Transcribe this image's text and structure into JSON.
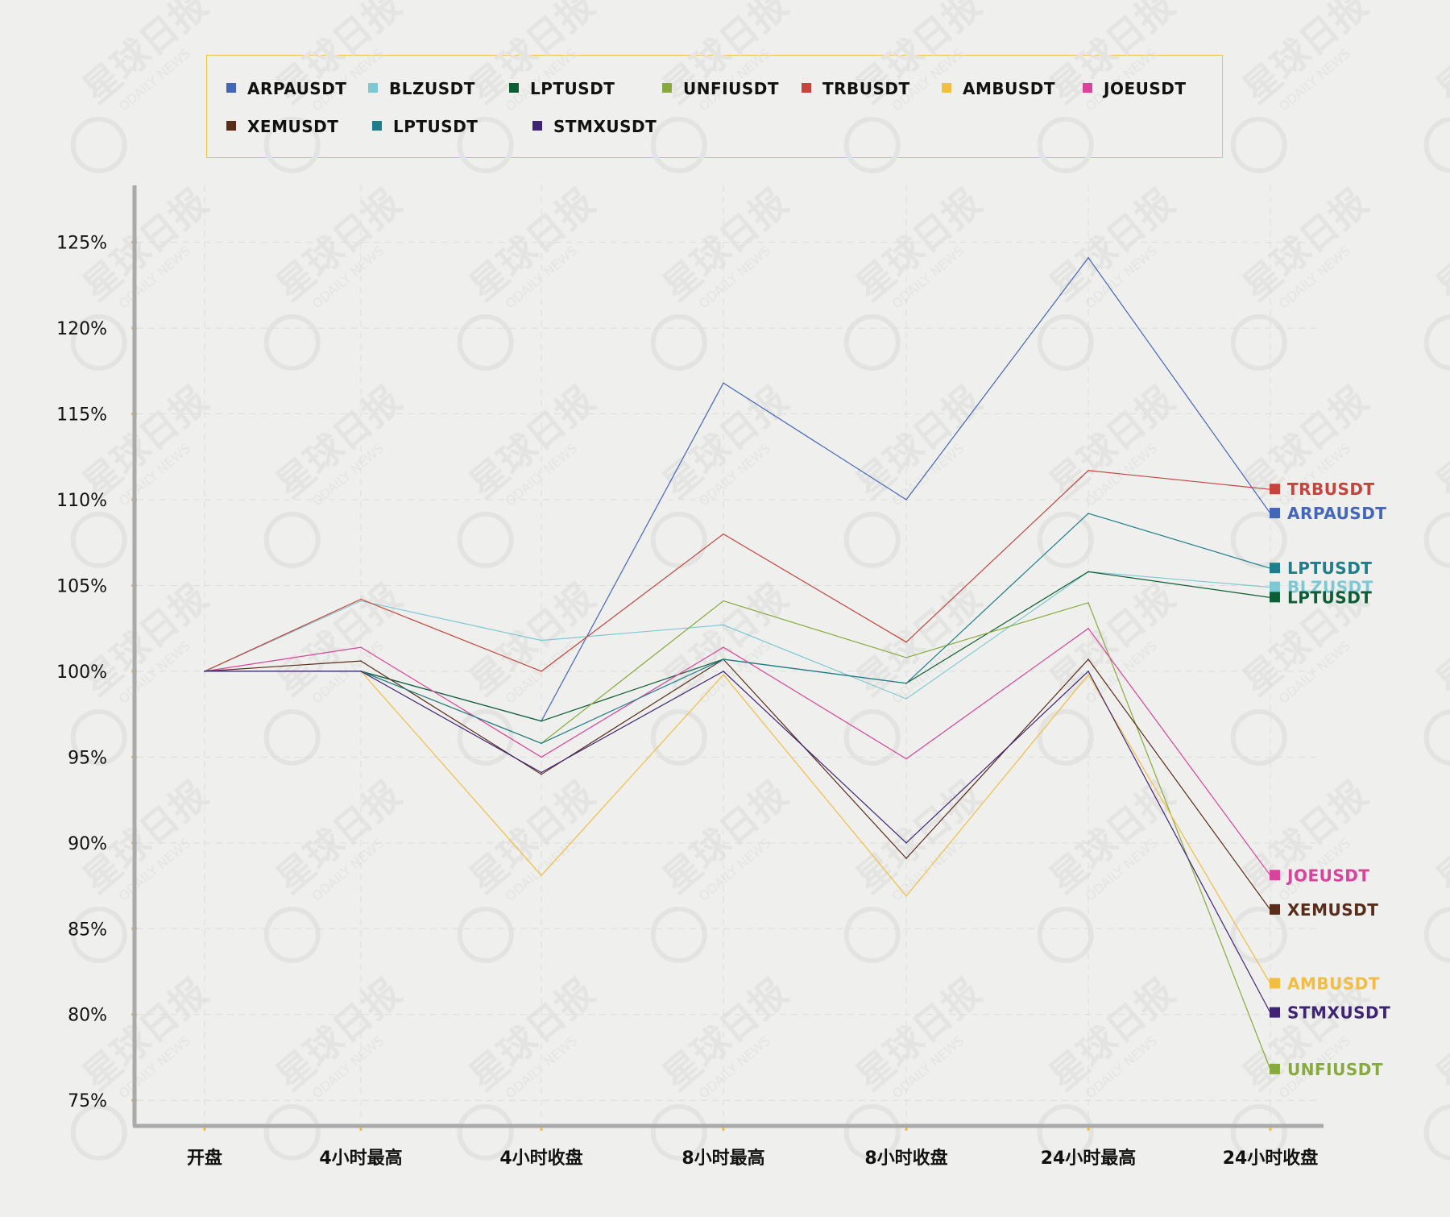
{
  "chart_data": {
    "type": "line",
    "categories": [
      "开盘",
      "4小时最高",
      "4小时收盘",
      "8小时最高",
      "8小时收盘",
      "24小时最高",
      "24小时收盘"
    ],
    "y_ticks": [
      "75%",
      "80%",
      "85%",
      "90%",
      "95%",
      "100%",
      "105%",
      "110%",
      "115%",
      "120%",
      "125%"
    ],
    "ylim": [
      73.6,
      128.6
    ],
    "y_unit": "%",
    "grid": true,
    "legend_position": "top",
    "series": [
      {
        "name": "ARPAUSDT",
        "color": "#4466b8",
        "values": [
          100,
          100,
          97.1,
          116.8,
          110.0,
          124.1,
          109.2
        ]
      },
      {
        "name": "BLZUSDT",
        "color": "#7ec8d4",
        "values": [
          100,
          104.1,
          101.8,
          102.7,
          98.4,
          105.8,
          104.9
        ]
      },
      {
        "name": "LPTUSDT",
        "color": "#0d5e34",
        "values": [
          100,
          100,
          97.1,
          100.7,
          99.3,
          105.8,
          104.3
        ]
      },
      {
        "name": "UNFIUSDT",
        "color": "#86aa3c",
        "values": [
          100,
          100,
          95.8,
          104.1,
          100.8,
          104.0,
          76.8
        ]
      },
      {
        "name": "TRBUSDT",
        "color": "#c4453e",
        "values": [
          100,
          104.2,
          100.0,
          108.0,
          101.7,
          111.7,
          110.6
        ]
      },
      {
        "name": "AMBUSDT",
        "color": "#f2bd43",
        "values": [
          100,
          100,
          88.1,
          99.8,
          86.9,
          99.8,
          81.8
        ]
      },
      {
        "name": "JOEUSDT",
        "color": "#d9439a",
        "values": [
          100,
          101.4,
          95.0,
          101.4,
          94.9,
          102.5,
          88.1
        ]
      },
      {
        "name": "XEMUSDT",
        "color": "#5a2d1a",
        "values": [
          100,
          100.6,
          94.0,
          100.7,
          89.1,
          100.7,
          86.1
        ]
      },
      {
        "name": "LPTUSDT",
        "color": "#1f7e8c",
        "values": [
          100,
          100,
          95.8,
          100.7,
          99.3,
          109.2,
          106.0
        ]
      },
      {
        "name": "STMXUSDT",
        "color": "#3f2476",
        "values": [
          100,
          100,
          94.1,
          100.0,
          90.0,
          100.0,
          80.1
        ]
      }
    ],
    "end_labels": [
      {
        "name": "TRBUSDT",
        "color": "#c4453e",
        "series": 4
      },
      {
        "name": "ARPAUSDT",
        "color": "#4466b8",
        "series": 0
      },
      {
        "name": "LPTUSDT",
        "color": "#1f7e8c",
        "series": 8
      },
      {
        "name": "BLZUSDT",
        "color": "#7ec8d4",
        "series": 1
      },
      {
        "name": "LPTUSDT",
        "color": "#0d5e34",
        "series": 2
      },
      {
        "name": "JOEUSDT",
        "color": "#d9439a",
        "series": 6
      },
      {
        "name": "XEMUSDT",
        "color": "#5a2d1a",
        "series": 7
      },
      {
        "name": "AMBUSDT",
        "color": "#f2bd43",
        "series": 5
      },
      {
        "name": "STMXUSDT",
        "color": "#3f2476",
        "series": 9
      },
      {
        "name": "UNFIUSDT",
        "color": "#86aa3c",
        "series": 3
      }
    ],
    "title": "",
    "xlabel": "",
    "ylabel": ""
  },
  "watermark": {
    "text": "星球日报",
    "subtext": "ODAILY NEWS"
  },
  "colors": {
    "axis": "#aaaaaa",
    "tick_marker": "#f2bd43",
    "legend_border": "#f0c24a",
    "background": "#efefed"
  }
}
